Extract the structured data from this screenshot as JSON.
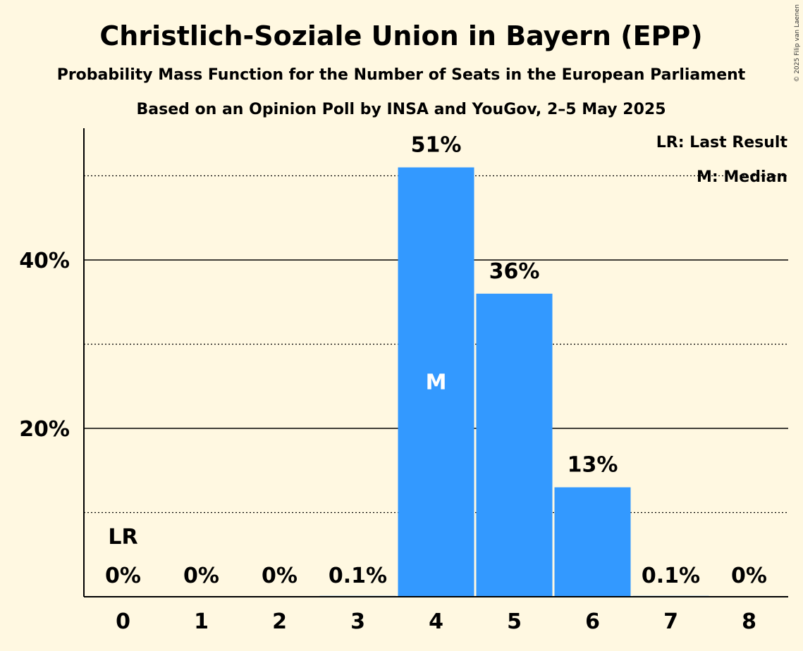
{
  "chart_data": {
    "type": "bar",
    "title": "Christlich-Soziale Union in Bayern (EPP)",
    "subtitle": "Probability Mass Function for the Number of Seats in the European Parliament",
    "subtitle2": "Based on an Opinion Poll by INSA and YouGov, 2–5 May 2025",
    "categories": [
      "0",
      "1",
      "2",
      "3",
      "4",
      "5",
      "6",
      "7",
      "8"
    ],
    "values": [
      0,
      0,
      0,
      0.1,
      51,
      36,
      13,
      0.1,
      0
    ],
    "value_labels": [
      "0%",
      "0%",
      "0%",
      "0.1%",
      "51%",
      "36%",
      "13%",
      "0.1%",
      "0%"
    ],
    "ylim": [
      0,
      55.4
    ],
    "y_ticks_major": [
      20,
      40
    ],
    "y_tick_labels": [
      "20%",
      "40%"
    ],
    "y_ticks_minor": [
      10,
      30,
      50
    ],
    "median_index": 4,
    "median_marker": "M",
    "last_result_index": 0,
    "last_result_marker": "LR",
    "legend": [
      "LR: Last Result",
      "M: Median"
    ],
    "legend_position": "top-right",
    "bar_color": "#3399FF",
    "background_color": "#FFF8E1",
    "copyright": "© 2025 Filip van Laenen"
  }
}
